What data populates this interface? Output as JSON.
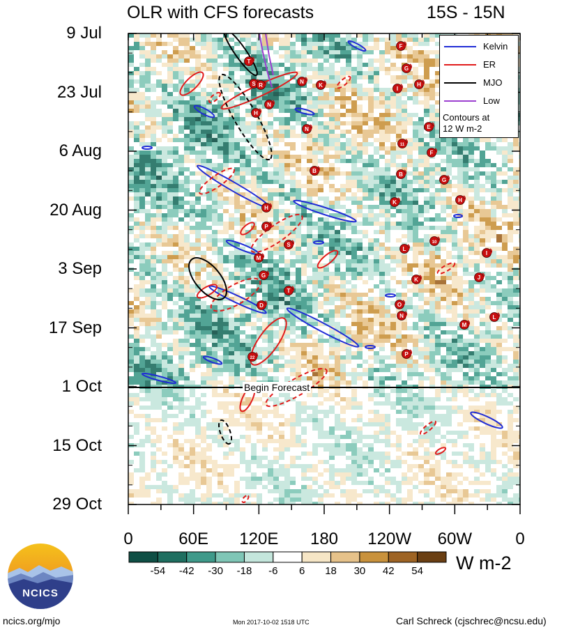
{
  "title": "OLR with CFS forecasts",
  "region": "15S - 15N",
  "footer": {
    "left": "ncics.org/mjo",
    "timestamp": "Mon 2017-10-02 1518 UTC",
    "author": "Carl Schreck (cjschrec@ncsu.edu)"
  },
  "logo_text": "NCICS",
  "units": "W m-2",
  "forecast_label": "Begin Forecast",
  "legend": {
    "items": [
      {
        "label": "Kelvin",
        "color": "#1f2bd6"
      },
      {
        "label": "ER",
        "color": "#e11b1b"
      },
      {
        "label": "MJO",
        "color": "#000000"
      },
      {
        "label": "Low",
        "color": "#9b3fd0"
      }
    ],
    "note_line1": "Contours at",
    "note_line2": "12 W m-2"
  },
  "chart_data": {
    "type": "heatmap",
    "title": "OLR with CFS forecasts",
    "subtitle": "15S - 15N",
    "x_tick_labels": [
      "0",
      "60E",
      "120E",
      "180",
      "120W",
      "60W",
      "0"
    ],
    "x_range_deg_east": [
      0,
      360
    ],
    "y_tick_labels": [
      "9 Jul",
      "23 Jul",
      "6 Aug",
      "20 Aug",
      "3 Sep",
      "17 Sep",
      "1 Oct",
      "15 Oct",
      "29 Oct"
    ],
    "y_range": [
      "9 Jul",
      "29 Oct"
    ],
    "forecast_begins": "1 Oct",
    "colorbar": {
      "labels": [
        "-54",
        "-42",
        "-30",
        "-18",
        "-6",
        "6",
        "18",
        "30",
        "42",
        "54"
      ],
      "colors": [
        "#0f4f45",
        "#1f6f60",
        "#3f9a8a",
        "#7fc6b6",
        "#c4e6dc",
        "#ffffff",
        "#f6e6c6",
        "#e6c28a",
        "#c9923c",
        "#9e6424",
        "#6a3f13"
      ]
    },
    "contour_interval": "12 W m-2",
    "series": [
      {
        "name": "Kelvin",
        "color": "#1f2bd6"
      },
      {
        "name": "ER",
        "color": "#e11b1b"
      },
      {
        "name": "MJO",
        "color": "#000000"
      },
      {
        "name": "Low",
        "color": "#9b3fd0"
      }
    ],
    "storm_labels": [
      "F",
      "G",
      "B",
      "H",
      "T",
      "S",
      "R",
      "N",
      "K",
      "N",
      "I",
      "H",
      "N",
      "E",
      "11",
      "F",
      "B",
      "G",
      "K",
      "H",
      "H",
      "P",
      "S",
      "10",
      "L",
      "M",
      "I",
      "G",
      "K",
      "J",
      "T",
      "D",
      "O",
      "N",
      "M",
      "L",
      "P",
      "22"
    ]
  }
}
